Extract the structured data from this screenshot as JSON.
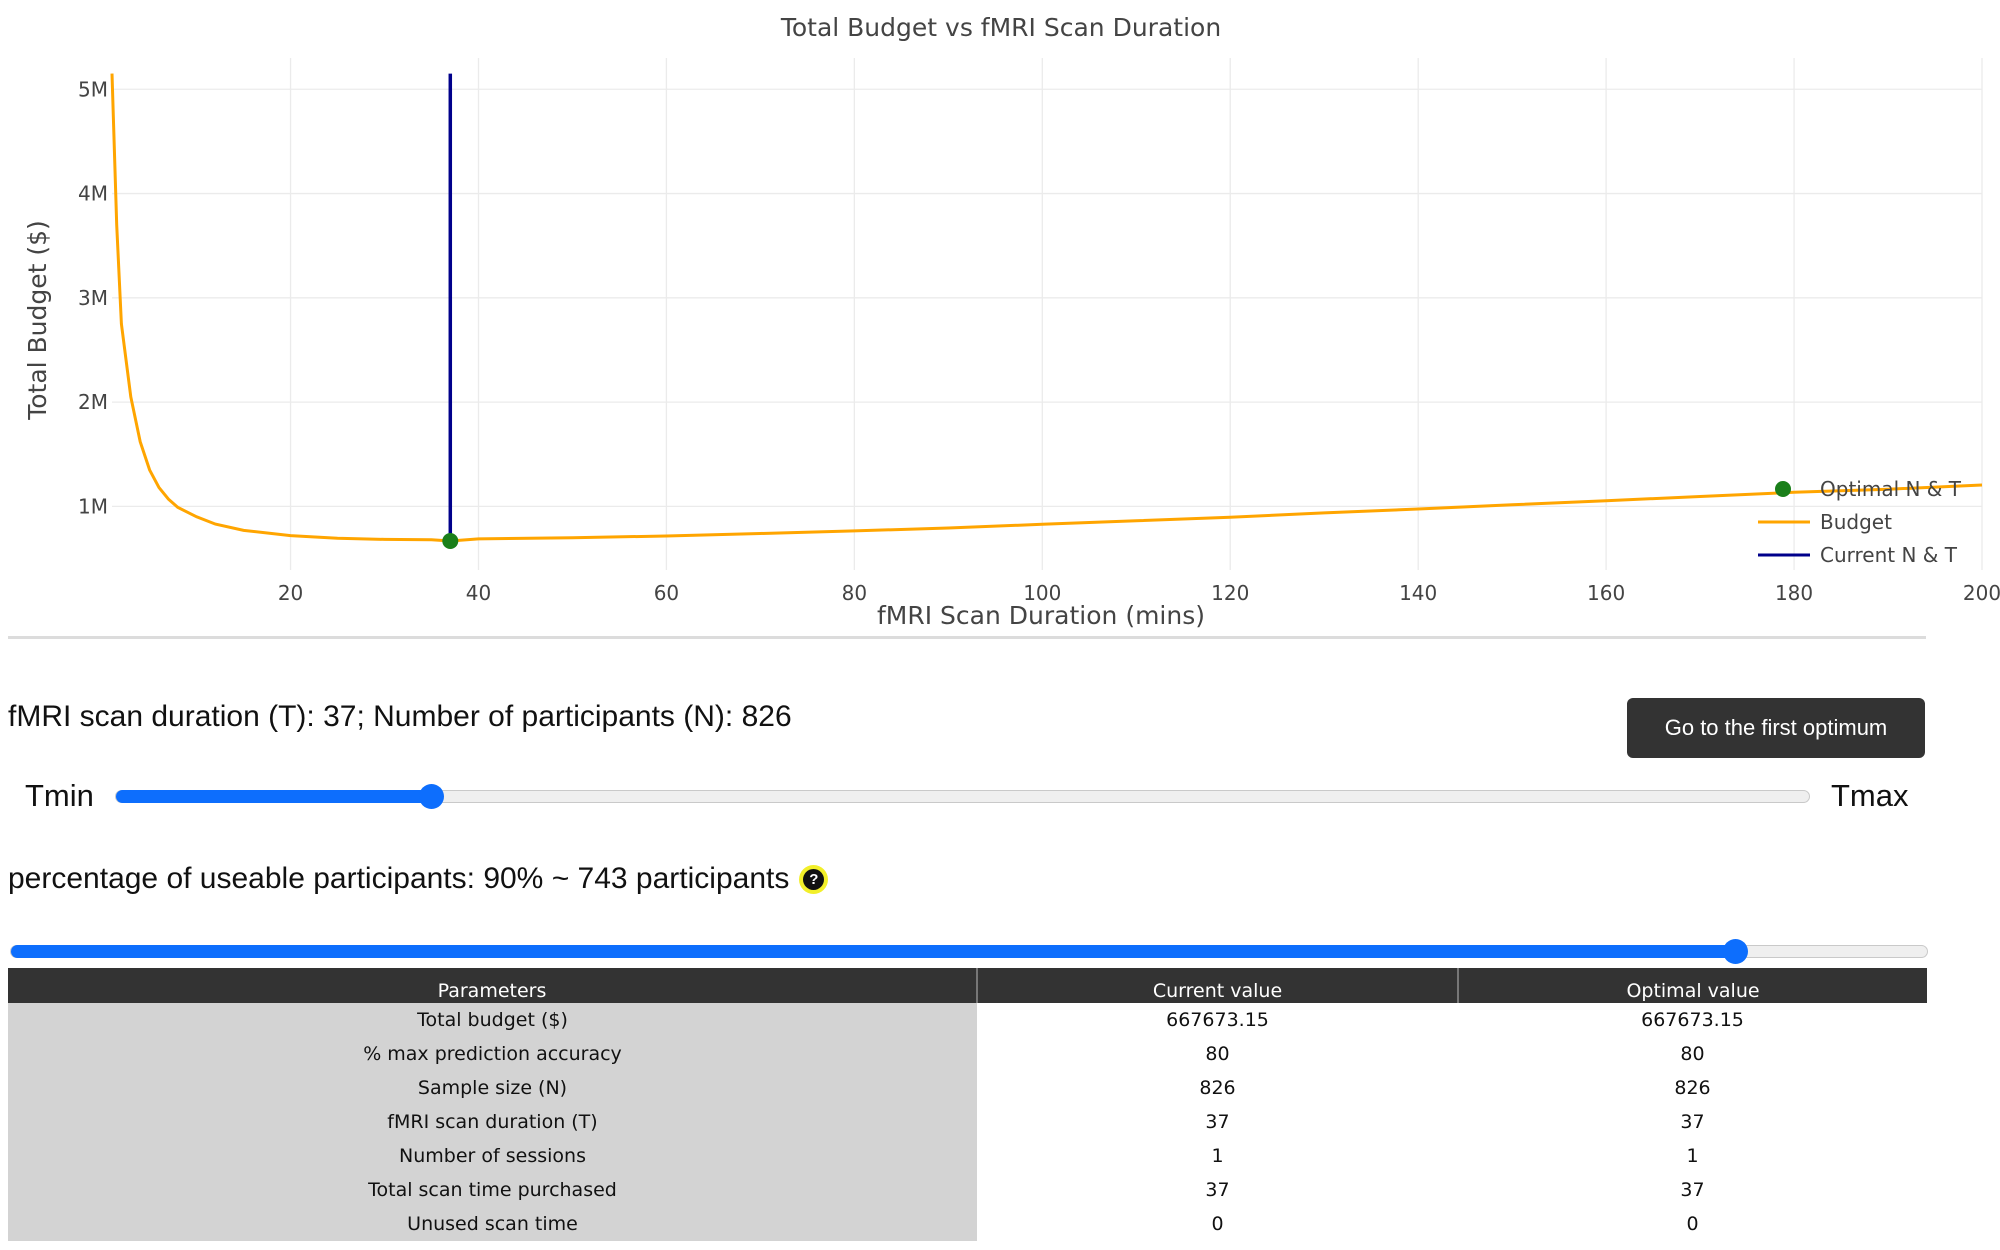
{
  "chart_data": {
    "type": "line",
    "title": "Total Budget vs fMRI Scan Duration",
    "xlabel": "fMRI Scan Duration (mins)",
    "ylabel": "Total Budget ($)",
    "xlim": [
      1,
      200
    ],
    "ylim": [
      390000,
      5300000
    ],
    "x_ticks": [
      20,
      40,
      60,
      80,
      100,
      120,
      140,
      160,
      180,
      200
    ],
    "x_tick_labels": [
      "20",
      "40",
      "60",
      "80",
      "100",
      "120",
      "140",
      "160",
      "180",
      "200"
    ],
    "y_ticks": [
      1000000,
      2000000,
      3000000,
      4000000,
      5000000
    ],
    "y_tick_labels": [
      "1M",
      "2M",
      "3M",
      "4M",
      "5M"
    ],
    "grid": true,
    "legend_position": "right",
    "series": [
      {
        "name": "Budget",
        "color": "#ffa500",
        "x": [
          1,
          1.5,
          2,
          3,
          4,
          5,
          6,
          7,
          8,
          10,
          12,
          15,
          20,
          25,
          30,
          35,
          37,
          40,
          50,
          60,
          70,
          80,
          90,
          100,
          110,
          120,
          130,
          140,
          150,
          160,
          170,
          180,
          190,
          200
        ],
        "y": [
          5150000,
          3700000,
          2750000,
          2050000,
          1620000,
          1350000,
          1180000,
          1070000,
          990000,
          900000,
          830000,
          770000,
          720000,
          695000,
          683000,
          680000,
          668000,
          688000,
          700000,
          716000,
          740000,
          765000,
          793000,
          828000,
          862000,
          896000,
          938000,
          975000,
          1015000,
          1055000,
          1095000,
          1135000,
          1165000,
          1205000
        ]
      },
      {
        "name": "Current N & T",
        "color": "#00008b",
        "x": [
          37,
          37
        ],
        "y": [
          668000,
          5150000
        ]
      },
      {
        "name": "Optimal N & T",
        "color": "#1a7f1a",
        "x": [
          37
        ],
        "y": [
          668000
        ]
      }
    ]
  },
  "controls": {
    "duration_text": "fMRI scan duration (T): 37; Number of participants (N): 826",
    "optimum_button": "Go to the first optimum",
    "tmin_label": "Tmin",
    "tmax_label": "Tmax",
    "t_slider_fraction": 0.186,
    "pct_text": "percentage of useable participants: 90% ~ 743 participants",
    "help_icon": "question-circle-icon",
    "help_glyph": "?",
    "pct_slider_fraction": 0.9,
    "accent_color": "#0d6efd"
  },
  "table": {
    "headers": [
      "Parameters",
      "Current value",
      "Optimal value"
    ],
    "rows": [
      [
        "Total budget ($)",
        "667673.15",
        "667673.15"
      ],
      [
        "% max prediction accuracy",
        "80",
        "80"
      ],
      [
        "Sample size (N)",
        "826",
        "826"
      ],
      [
        "fMRI scan duration (T)",
        "37",
        "37"
      ],
      [
        "Number of sessions",
        "1",
        "1"
      ],
      [
        "Total scan time purchased",
        "37",
        "37"
      ],
      [
        "Unused scan time",
        "0",
        "0"
      ]
    ]
  }
}
